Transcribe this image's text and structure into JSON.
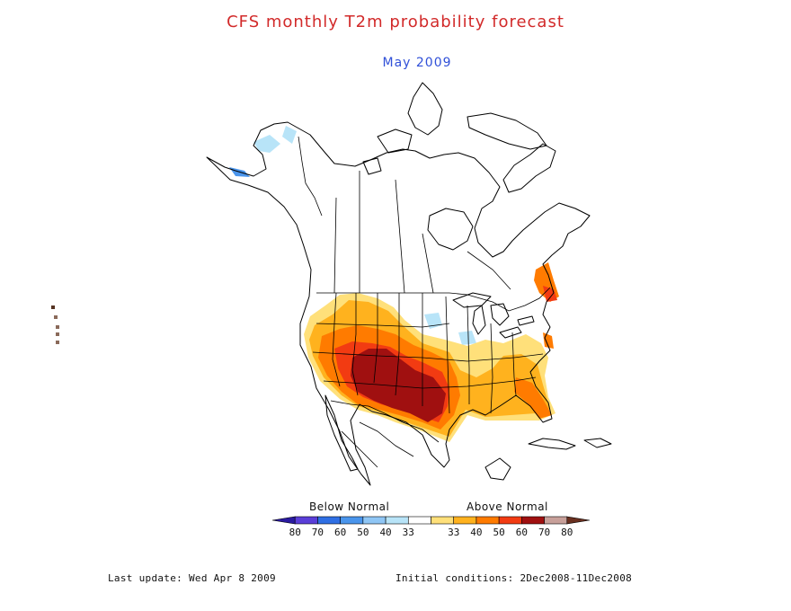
{
  "title": "CFS monthly T2m probability forecast",
  "subtitle": "May 2009",
  "legend": {
    "below_label": "Below Normal",
    "above_label": "Above Normal",
    "bins": [
      {
        "label": "80",
        "color": "#2a1aa0"
      },
      {
        "label": "70",
        "color": "#5a3ed8"
      },
      {
        "label": "60",
        "color": "#2f6fe4"
      },
      {
        "label": "50",
        "color": "#4a95ec"
      },
      {
        "label": "40",
        "color": "#8fc6f5"
      },
      {
        "label": "33",
        "color": "#b8e4f8"
      },
      {
        "label": "",
        "color": "#ffffff"
      },
      {
        "label": "33",
        "color": "#ffe07a"
      },
      {
        "label": "40",
        "color": "#ffb21e"
      },
      {
        "label": "50",
        "color": "#ff7b00"
      },
      {
        "label": "60",
        "color": "#f23b12"
      },
      {
        "label": "70",
        "color": "#a01010"
      },
      {
        "label": "80",
        "color": "#c8a09a"
      },
      {
        "label": "",
        "color": "#6a3020"
      }
    ]
  },
  "footer": {
    "last_update": "Last update: Wed Apr 8 2009",
    "initial_conditions": "Initial conditions: 2Dec2008-11Dec2008"
  }
}
